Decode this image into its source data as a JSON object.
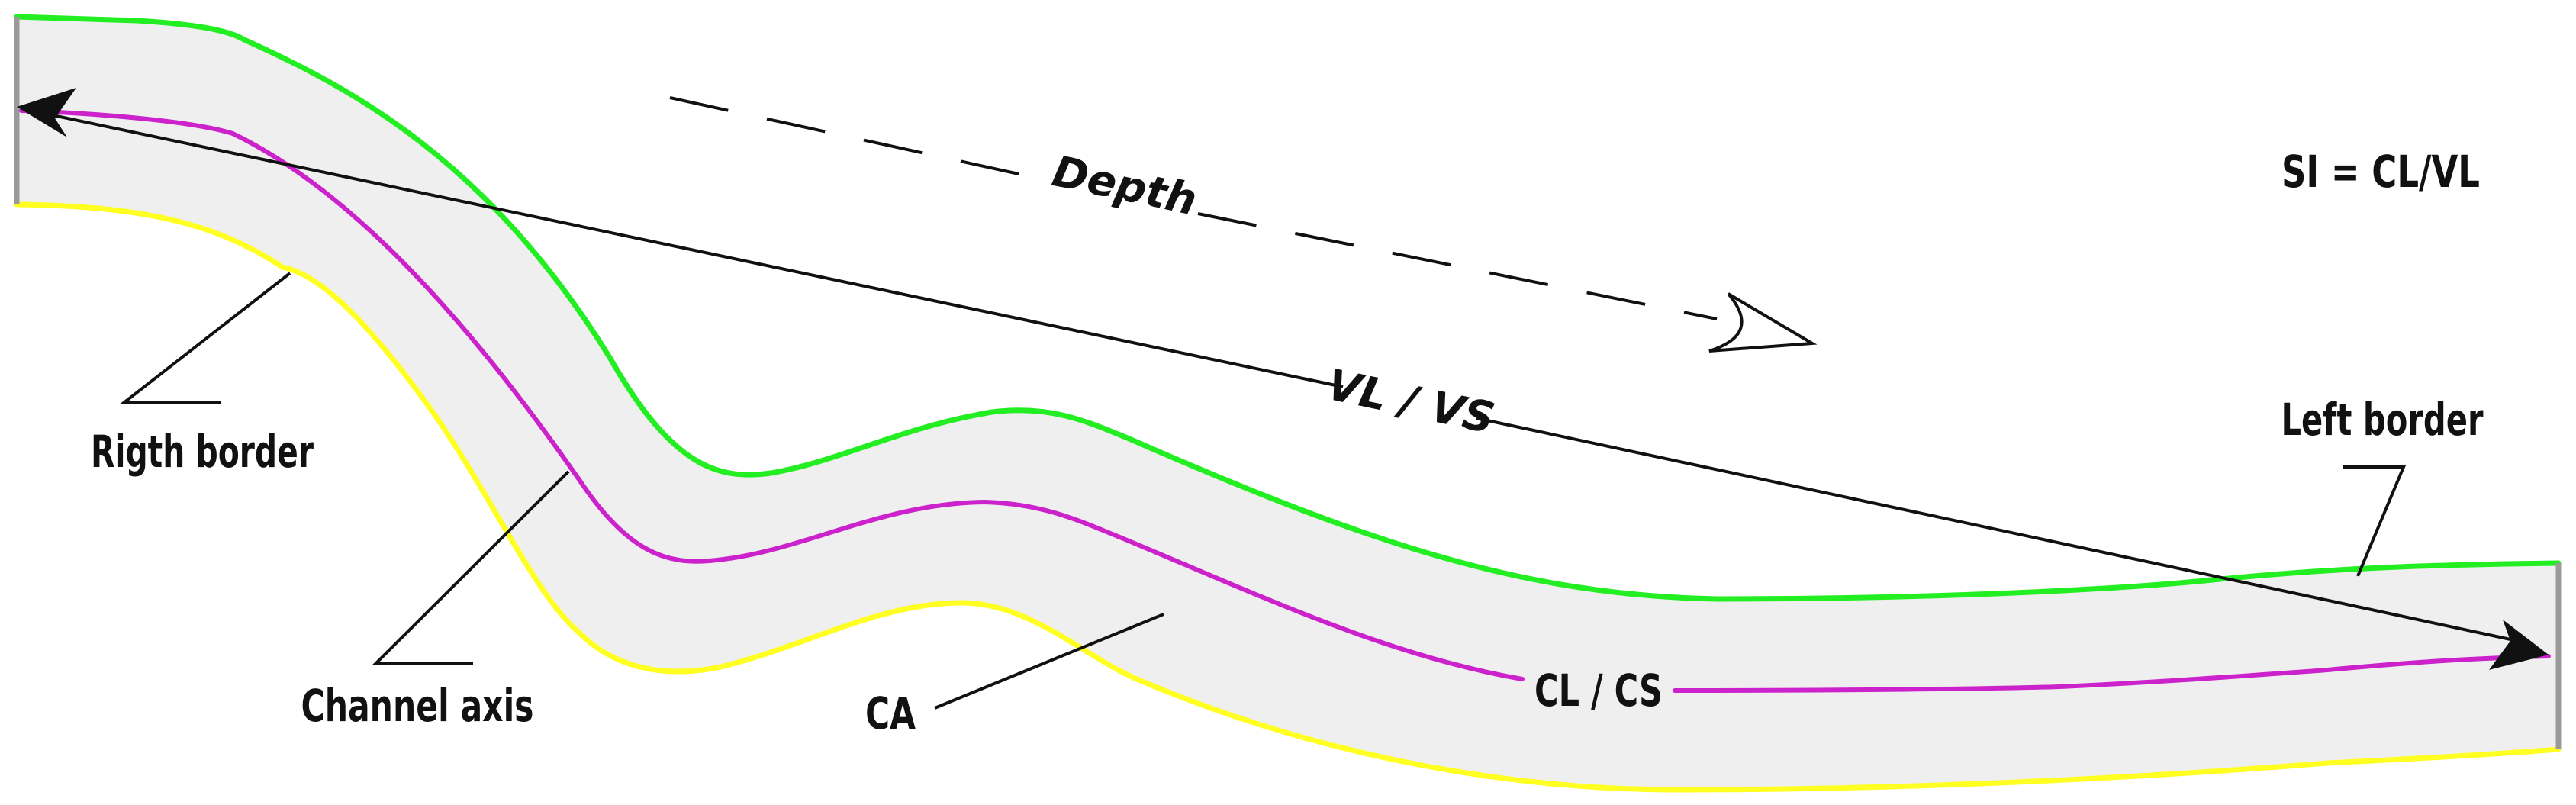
{
  "diagram": {
    "labels": {
      "depth": "Depth",
      "vl_vs": "VL / VS",
      "si_formula": "SI = CL/VL",
      "right_border": "Rigth border",
      "left_border": "Left border",
      "channel_axis": "Channel axis",
      "ca": "CA",
      "cl_cs": "CL / CS"
    },
    "colors": {
      "channel_fill": "#efefef",
      "left_border_line": "#22ee22",
      "channel_axis_line": "#cc22cc",
      "right_border_line": "#ffff22",
      "end_caps": "#9a9a9a",
      "leaders": "#111111"
    }
  }
}
